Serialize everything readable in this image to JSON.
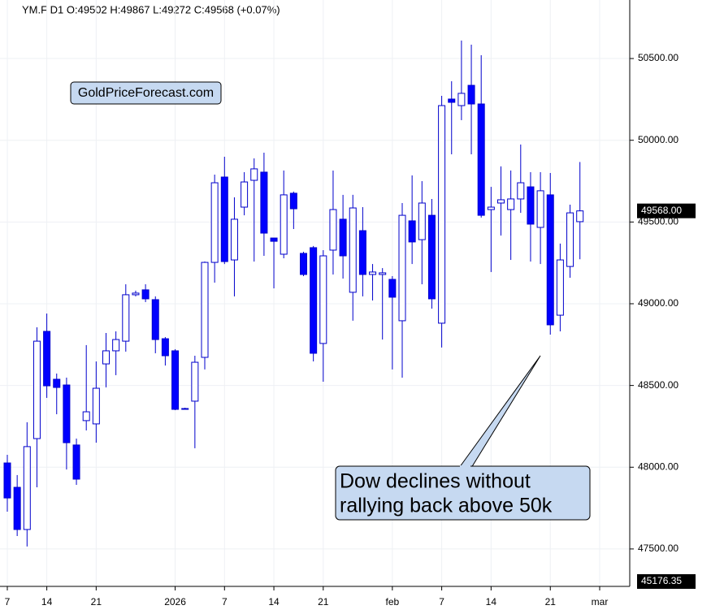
{
  "chart_data": {
    "type": "candlestick",
    "title": "YM.F  D1  O:49502  H:49867  L:49272  C:49568  (+0.07%)",
    "watermark": "GoldPriceForecast.com",
    "annotation_lines": [
      "Dow declines without",
      "rallying back above 50k"
    ],
    "last_price": {
      "value": 49568,
      "label": "49568.00"
    },
    "bottom_label": "45176.35",
    "up_color": "#ffffff",
    "down_color": "#0000ff",
    "grid": true,
    "categories": [
      "7",
      null,
      null,
      null,
      "14",
      null,
      null,
      null,
      null,
      "21",
      null,
      null,
      null,
      null,
      null,
      null,
      null,
      "2026",
      null,
      null,
      null,
      null,
      "7",
      null,
      null,
      null,
      null,
      "14",
      null,
      null,
      null,
      null,
      "21",
      null,
      null,
      null,
      null,
      null,
      null,
      "feb",
      null,
      null,
      null,
      null,
      "7",
      null,
      null,
      null,
      null,
      "14",
      null,
      null,
      null,
      null,
      null,
      "21",
      null,
      null,
      null,
      null,
      "mar"
    ],
    "open": [
      48026,
      47877,
      47619,
      48175,
      48831,
      48538,
      48503,
      48136,
      48285,
      48265,
      48632,
      48712,
      48771,
      49055,
      49085,
      49025,
      48786,
      48712,
      48359,
      48404,
      48672,
      49253,
      49775,
      49268,
      49591,
      49755,
      49805,
      49402,
      49303,
      49676,
      49308,
      49343,
      48757,
      49328,
      49517,
      49070,
      49447,
      49179,
      49179,
      49149,
      48896,
      49507,
      49392,
      49541,
      48881,
      50252,
      50212,
      50336,
      50222,
      49576,
      49616,
      49576,
      49641,
      49715,
      49467,
      49666,
      48930,
      49228,
      49502,
      null,
      null
    ],
    "high": [
      48076,
      47952,
      48275,
      48856,
      48940,
      48573,
      48548,
      48175,
      48747,
      48647,
      48821,
      48831,
      49119,
      49080,
      49119,
      49045,
      48796,
      48722,
      48364,
      48682,
      49258,
      49790,
      49899,
      49651,
      49805,
      49889,
      49924,
      49402,
      49815,
      49686,
      49318,
      49353,
      49328,
      49815,
      49666,
      49666,
      49591,
      49243,
      49218,
      49169,
      49616,
      49785,
      49750,
      49641,
      50272,
      50361,
      50610,
      50585,
      50520,
      49715,
      49840,
      49815,
      49974,
      49805,
      49805,
      49800,
      49368,
      49606,
      49867,
      null,
      null
    ],
    "low": [
      47728,
      47579,
      47515,
      47877,
      48424,
      48324,
      47986,
      47892,
      48225,
      48150,
      48488,
      48563,
      48707,
      49045,
      49010,
      48697,
      48622,
      48349,
      48354,
      48116,
      48598,
      49129,
      49243,
      49045,
      49541,
      49258,
      49293,
      49094,
      49278,
      49457,
      49169,
      48647,
      48523,
      49179,
      49154,
      48896,
      49045,
      49020,
      48781,
      48598,
      48548,
      49243,
      49119,
      48970,
      48732,
      49914,
      50123,
      49914,
      49527,
      49194,
      49417,
      49268,
      49556,
      49258,
      49243,
      48811,
      48831,
      49159,
      49272,
      null,
      null
    ],
    "close": [
      47812,
      47619,
      48126,
      48771,
      48498,
      48488,
      48150,
      47927,
      48339,
      48483,
      48712,
      48781,
      49055,
      49065,
      49030,
      48781,
      48682,
      48354,
      48359,
      48642,
      49253,
      49740,
      49258,
      49517,
      49745,
      49825,
      49432,
      49382,
      49666,
      49581,
      49179,
      48697,
      49293,
      49576,
      49293,
      49586,
      49179,
      49194,
      49189,
      49040,
      49541,
      49378,
      49616,
      49030,
      50212,
      50232,
      50287,
      50222,
      49541,
      49591,
      49636,
      49641,
      49740,
      49487,
      49691,
      48871,
      49268,
      49556,
      49568,
      null,
      null
    ],
    "ylim": [
      47271,
      50858
    ],
    "yticks": [
      {
        "value": 47500,
        "label": "47500.00"
      },
      {
        "value": 48000,
        "label": "48000.00"
      },
      {
        "value": 48500,
        "label": "48500.00"
      },
      {
        "value": 49000,
        "label": "49000.00"
      },
      {
        "value": 49500,
        "label": "49500.00"
      },
      {
        "value": 50000,
        "label": "50000.00"
      },
      {
        "value": 50500,
        "label": "50500.00"
      }
    ]
  }
}
